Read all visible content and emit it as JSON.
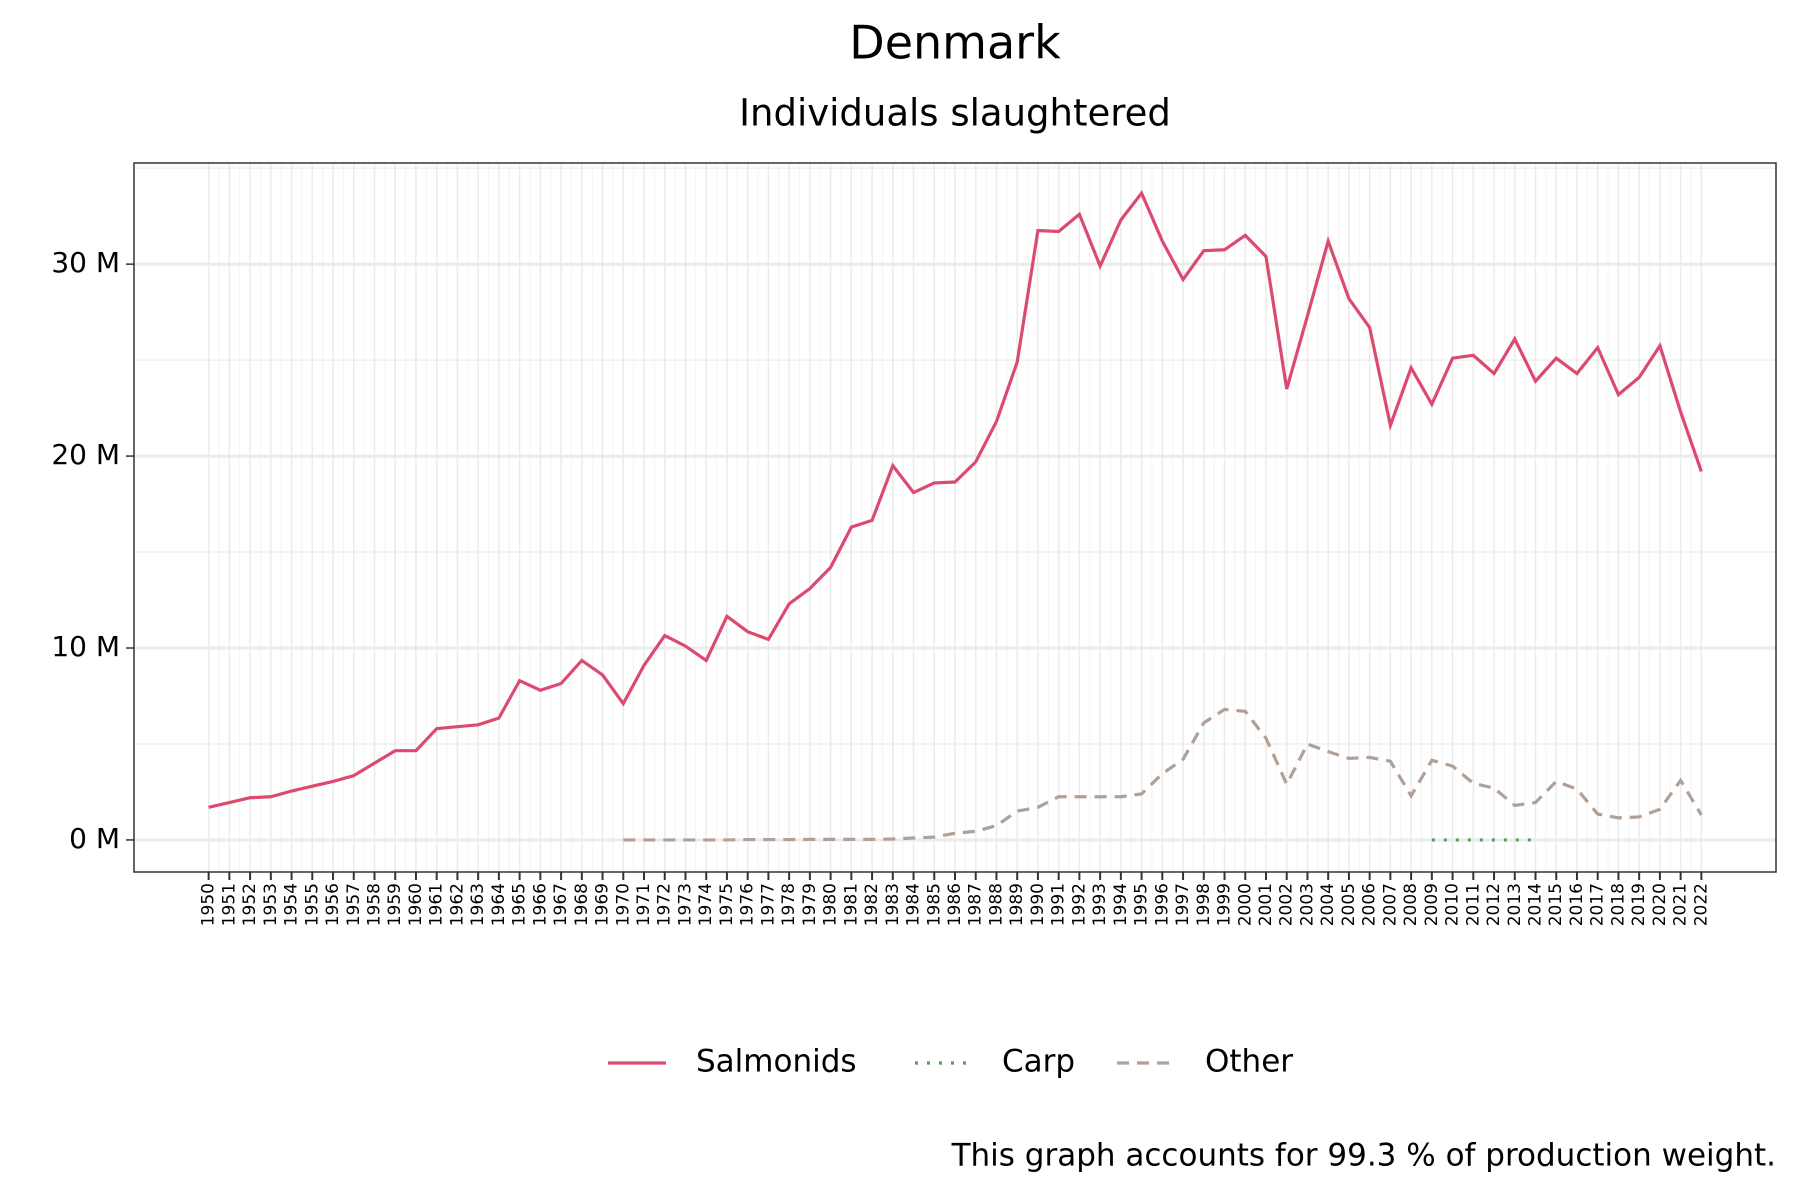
{
  "chart_data": {
    "type": "line",
    "title": "Denmark",
    "subtitle": "Individuals slaughtered",
    "caption": "This graph accounts for 99.3 % of production weight.",
    "x": [
      1950,
      1951,
      1952,
      1953,
      1954,
      1955,
      1956,
      1957,
      1958,
      1959,
      1960,
      1961,
      1962,
      1963,
      1964,
      1965,
      1966,
      1967,
      1968,
      1969,
      1970,
      1971,
      1972,
      1973,
      1974,
      1975,
      1976,
      1977,
      1978,
      1979,
      1980,
      1981,
      1982,
      1983,
      1984,
      1985,
      1986,
      1987,
      1988,
      1989,
      1990,
      1991,
      1992,
      1993,
      1994,
      1995,
      1996,
      1997,
      1998,
      1999,
      2000,
      2001,
      2002,
      2003,
      2004,
      2005,
      2006,
      2007,
      2008,
      2009,
      2010,
      2011,
      2012,
      2013,
      2014,
      2015,
      2016,
      2017,
      2018,
      2019,
      2020,
      2021,
      2022
    ],
    "series": [
      {
        "name": "Salmonids",
        "color": "#dc4a70",
        "dash": "solid",
        "values": [
          1.7,
          1.95,
          2.2,
          2.25,
          2.55,
          2.8,
          3.05,
          3.35,
          4.0,
          4.65,
          4.65,
          5.8,
          5.9,
          6.0,
          6.35,
          8.3,
          7.8,
          8.15,
          9.35,
          8.6,
          7.1,
          9.1,
          10.65,
          10.1,
          9.35,
          11.65,
          10.85,
          10.45,
          12.3,
          13.1,
          14.2,
          16.3,
          16.65,
          19.5,
          18.1,
          18.6,
          18.65,
          19.7,
          21.8,
          24.9,
          31.75,
          31.7,
          32.6,
          29.9,
          32.3,
          33.7,
          31.2,
          29.2,
          30.7,
          30.75,
          31.5,
          30.4,
          23.5,
          27.3,
          31.2,
          28.2,
          26.7,
          21.6,
          24.6,
          22.7,
          25.1,
          25.25,
          24.3,
          26.1,
          23.9,
          25.1,
          24.3,
          25.65,
          23.2,
          24.1,
          25.75,
          22.3,
          19.2
        ]
      },
      {
        "name": "Carp",
        "color": "#5a9e5a",
        "dash": "dotted",
        "values": [
          null,
          null,
          null,
          null,
          null,
          null,
          null,
          null,
          null,
          null,
          null,
          null,
          null,
          null,
          null,
          null,
          null,
          null,
          null,
          null,
          null,
          null,
          null,
          null,
          null,
          null,
          null,
          null,
          null,
          null,
          null,
          null,
          null,
          null,
          null,
          null,
          null,
          null,
          null,
          null,
          null,
          null,
          null,
          null,
          null,
          null,
          null,
          null,
          null,
          null,
          null,
          null,
          null,
          null,
          null,
          null,
          null,
          null,
          null,
          0,
          0,
          0,
          0,
          0,
          0,
          null,
          null,
          null,
          null,
          null,
          null,
          null,
          null
        ]
      },
      {
        "name": "Other",
        "color": "#b0a096",
        "dash": "dashed",
        "values": [
          null,
          null,
          null,
          null,
          null,
          null,
          null,
          null,
          null,
          null,
          null,
          null,
          null,
          null,
          null,
          null,
          null,
          null,
          null,
          null,
          0,
          0,
          0,
          0,
          0,
          0,
          0.02,
          0.02,
          0.02,
          0.03,
          0.03,
          0.03,
          0.03,
          0.05,
          0.1,
          0.15,
          0.35,
          0.45,
          0.75,
          1.5,
          1.7,
          2.25,
          2.25,
          2.25,
          2.25,
          2.4,
          3.45,
          4.2,
          6.1,
          6.8,
          6.7,
          5.3,
          2.9,
          5.0,
          4.6,
          4.25,
          4.3,
          4.1,
          2.3,
          4.15,
          3.85,
          2.95,
          2.7,
          1.8,
          1.95,
          3.05,
          2.65,
          1.35,
          1.15,
          1.2,
          1.6,
          3.1,
          1.3
        ]
      }
    ],
    "xlim": [
      1946.4,
      2025.6
    ],
    "ylim": [
      -1.67,
      35.27
    ],
    "yticks": [
      {
        "value": 0,
        "label": "0 M"
      },
      {
        "value": 10,
        "label": "10 M"
      },
      {
        "value": 20,
        "label": "20 M"
      },
      {
        "value": 30,
        "label": "30 M"
      }
    ],
    "grid": true,
    "legend": "bottom"
  }
}
